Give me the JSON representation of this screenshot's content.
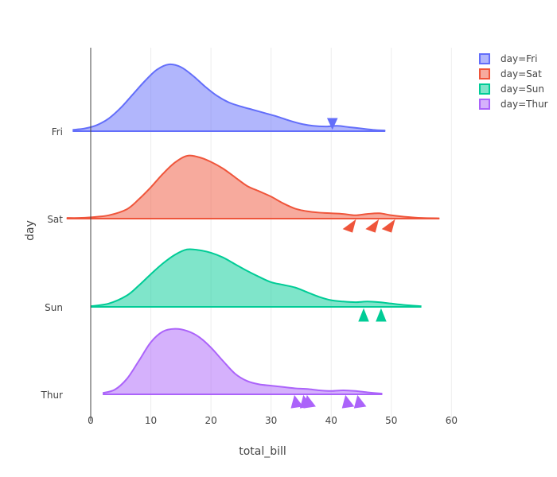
{
  "chart_data": {
    "type": "violin",
    "orientation": "horizontal",
    "side": "positive",
    "points": "outliers",
    "xlabel": "total_bill",
    "ylabel": "day",
    "xlim": [
      -4.5,
      63
    ],
    "xticks": [
      0,
      10,
      20,
      30,
      40,
      50,
      60
    ],
    "xtick_labels": [
      "0",
      "10",
      "20",
      "30",
      "40",
      "50",
      "60"
    ],
    "x_gridlines": true,
    "zero_line": true,
    "categories": [
      "Fri",
      "Sat",
      "Sun",
      "Thur"
    ],
    "legend_position": "top-right",
    "series": [
      {
        "name": "day=Fri",
        "category": "Fri",
        "color": "#636efa",
        "density": [
          [
            -3,
            0.02
          ],
          [
            -1,
            0.04
          ],
          [
            1,
            0.09
          ],
          [
            3,
            0.19
          ],
          [
            5,
            0.35
          ],
          [
            7,
            0.55
          ],
          [
            9,
            0.75
          ],
          [
            11,
            0.92
          ],
          [
            13,
            1.0
          ],
          [
            15,
            0.96
          ],
          [
            17,
            0.83
          ],
          [
            19,
            0.67
          ],
          [
            21,
            0.53
          ],
          [
            23,
            0.43
          ],
          [
            25,
            0.37
          ],
          [
            27,
            0.32
          ],
          [
            29,
            0.27
          ],
          [
            31,
            0.22
          ],
          [
            33,
            0.16
          ],
          [
            35,
            0.11
          ],
          [
            37,
            0.08
          ],
          [
            39,
            0.07
          ],
          [
            41,
            0.08
          ],
          [
            43,
            0.06
          ],
          [
            45,
            0.04
          ],
          [
            47,
            0.02
          ],
          [
            49,
            0.01
          ]
        ],
        "outliers": [
          40.2
        ]
      },
      {
        "name": "day=Sat",
        "category": "Sat",
        "color": "#ef553b",
        "density": [
          [
            -4,
            0.01
          ],
          [
            -2,
            0.01
          ],
          [
            0,
            0.02
          ],
          [
            3,
            0.05
          ],
          [
            6,
            0.14
          ],
          [
            8,
            0.29
          ],
          [
            10,
            0.47
          ],
          [
            12,
            0.67
          ],
          [
            14,
            0.84
          ],
          [
            16,
            0.94
          ],
          [
            18,
            0.92
          ],
          [
            20,
            0.85
          ],
          [
            22,
            0.75
          ],
          [
            24,
            0.62
          ],
          [
            26,
            0.49
          ],
          [
            28,
            0.41
          ],
          [
            30,
            0.33
          ],
          [
            32,
            0.23
          ],
          [
            34,
            0.15
          ],
          [
            36,
            0.11
          ],
          [
            38,
            0.09
          ],
          [
            40,
            0.08
          ],
          [
            42,
            0.07
          ],
          [
            44,
            0.05
          ],
          [
            46,
            0.07
          ],
          [
            48,
            0.08
          ],
          [
            50,
            0.05
          ],
          [
            52,
            0.03
          ],
          [
            55,
            0.01
          ],
          [
            58,
            0.005
          ]
        ],
        "outliers": [
          43.1,
          46.9,
          49.6
        ]
      },
      {
        "name": "day=Sun",
        "category": "Sun",
        "color": "#00cc96",
        "density": [
          [
            0,
            0.01
          ],
          [
            3,
            0.05
          ],
          [
            6,
            0.17
          ],
          [
            8,
            0.32
          ],
          [
            10,
            0.49
          ],
          [
            12,
            0.65
          ],
          [
            14,
            0.78
          ],
          [
            16,
            0.86
          ],
          [
            18,
            0.85
          ],
          [
            20,
            0.81
          ],
          [
            22,
            0.74
          ],
          [
            24,
            0.64
          ],
          [
            26,
            0.54
          ],
          [
            28,
            0.45
          ],
          [
            30,
            0.37
          ],
          [
            32,
            0.33
          ],
          [
            34,
            0.29
          ],
          [
            36,
            0.22
          ],
          [
            38,
            0.15
          ],
          [
            40,
            0.1
          ],
          [
            42,
            0.08
          ],
          [
            44,
            0.07
          ],
          [
            46,
            0.08
          ],
          [
            48,
            0.07
          ],
          [
            50,
            0.05
          ],
          [
            52,
            0.03
          ],
          [
            55,
            0.01
          ]
        ],
        "outliers": [
          45.4,
          48.3
        ]
      },
      {
        "name": "day=Thur",
        "category": "Thur",
        "color": "#ab63fa",
        "density": [
          [
            2,
            0.02
          ],
          [
            4,
            0.07
          ],
          [
            6,
            0.23
          ],
          [
            8,
            0.5
          ],
          [
            10,
            0.78
          ],
          [
            12,
            0.94
          ],
          [
            14,
            0.98
          ],
          [
            16,
            0.95
          ],
          [
            18,
            0.86
          ],
          [
            20,
            0.7
          ],
          [
            22,
            0.5
          ],
          [
            24,
            0.31
          ],
          [
            26,
            0.2
          ],
          [
            28,
            0.15
          ],
          [
            30,
            0.13
          ],
          [
            32,
            0.11
          ],
          [
            34,
            0.09
          ],
          [
            36,
            0.08
          ],
          [
            38,
            0.06
          ],
          [
            40,
            0.05
          ],
          [
            42,
            0.06
          ],
          [
            44,
            0.05
          ],
          [
            46,
            0.03
          ],
          [
            48.5,
            0.01
          ]
        ],
        "outliers": [
          34.3,
          35.8,
          36.4,
          42.8,
          44.8
        ]
      }
    ]
  }
}
